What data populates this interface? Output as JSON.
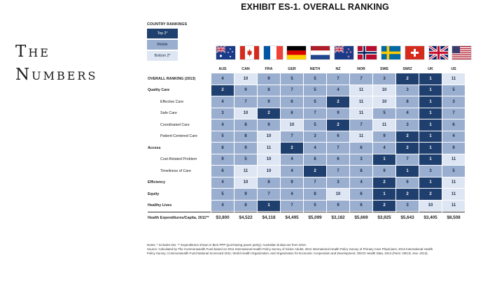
{
  "slide_title": "The Numbers",
  "exhibit_title": "EXHIBIT ES-1. OVERALL RANKING",
  "legend": {
    "title": "COUNTRY RANKINGS",
    "items": [
      {
        "label": "Top 2*",
        "tier": "top"
      },
      {
        "label": "Middle",
        "tier": "mid"
      },
      {
        "label": "Bottom 2*",
        "tier": "bot"
      }
    ]
  },
  "columns": [
    "AUS",
    "CAN",
    "FRA",
    "GER",
    "NETH",
    "NZ",
    "NOR",
    "SWE",
    "SWIZ",
    "UK",
    "US"
  ],
  "flags": [
    "australia-flag-icon",
    "canada-flag-icon",
    "france-flag-icon",
    "germany-flag-icon",
    "netherlands-flag-icon",
    "new-zealand-flag-icon",
    "norway-flag-icon",
    "sweden-flag-icon",
    "switzerland-flag-icon",
    "uk-flag-icon",
    "us-flag-icon"
  ],
  "rows": [
    {
      "label": "OVERALL RANKING (2013)",
      "kind": "main",
      "values": [
        "4",
        "10",
        "9",
        "5",
        "5",
        "7",
        "7",
        "3",
        "2",
        "1",
        "11"
      ]
    },
    {
      "label": "Quality Care",
      "kind": "main",
      "values": [
        "2",
        "9",
        "8",
        "7",
        "5",
        "4",
        "11",
        "10",
        "3",
        "1",
        "5"
      ]
    },
    {
      "label": "Effective Care",
      "kind": "sub",
      "values": [
        "4",
        "7",
        "9",
        "6",
        "5",
        "2",
        "11",
        "10",
        "8",
        "1",
        "3"
      ]
    },
    {
      "label": "Safe Care",
      "kind": "sub",
      "values": [
        "3",
        "10",
        "2",
        "6",
        "7",
        "9",
        "11",
        "5",
        "4",
        "1",
        "7"
      ]
    },
    {
      "label": "Coordinated Care",
      "kind": "sub",
      "values": [
        "4",
        "8",
        "9",
        "10",
        "5",
        "2",
        "7",
        "11",
        "3",
        "1",
        "6"
      ]
    },
    {
      "label": "Patient-Centered Care",
      "kind": "sub",
      "values": [
        "5",
        "8",
        "10",
        "7",
        "3",
        "6",
        "11",
        "9",
        "2",
        "1",
        "4"
      ]
    },
    {
      "label": "Access",
      "kind": "main",
      "values": [
        "8",
        "9",
        "11",
        "2",
        "4",
        "7",
        "6",
        "4",
        "2",
        "1",
        "9"
      ]
    },
    {
      "label": "Cost-Related Problem",
      "kind": "sub",
      "values": [
        "9",
        "5",
        "10",
        "4",
        "8",
        "6",
        "3",
        "1",
        "7",
        "1",
        "11"
      ]
    },
    {
      "label": "Timeliness of Care",
      "kind": "sub",
      "values": [
        "6",
        "11",
        "10",
        "4",
        "2",
        "7",
        "8",
        "9",
        "1",
        "3",
        "5"
      ]
    },
    {
      "label": "Efficiency",
      "kind": "main",
      "values": [
        "4",
        "10",
        "8",
        "9",
        "7",
        "3",
        "4",
        "2",
        "6",
        "1",
        "11"
      ]
    },
    {
      "label": "Equity",
      "kind": "main",
      "values": [
        "5",
        "9",
        "7",
        "4",
        "8",
        "10",
        "6",
        "1",
        "2",
        "2",
        "11"
      ]
    },
    {
      "label": "Healthy Lives",
      "kind": "main",
      "values": [
        "4",
        "8",
        "1",
        "7",
        "5",
        "9",
        "6",
        "2",
        "3",
        "10",
        "11"
      ]
    }
  ],
  "tiers": [
    [
      "mid",
      "bot",
      "mid",
      "mid",
      "mid",
      "mid",
      "mid",
      "mid",
      "top",
      "top",
      "bot"
    ],
    [
      "top",
      "mid",
      "mid",
      "mid",
      "mid",
      "mid",
      "bot",
      "bot",
      "mid",
      "top",
      "mid"
    ],
    [
      "mid",
      "mid",
      "mid",
      "mid",
      "mid",
      "top",
      "bot",
      "bot",
      "mid",
      "top",
      "mid"
    ],
    [
      "mid",
      "bot",
      "top",
      "mid",
      "mid",
      "mid",
      "bot",
      "mid",
      "mid",
      "top",
      "mid"
    ],
    [
      "mid",
      "mid",
      "mid",
      "bot",
      "mid",
      "top",
      "mid",
      "bot",
      "mid",
      "top",
      "mid"
    ],
    [
      "mid",
      "mid",
      "bot",
      "mid",
      "mid",
      "mid",
      "bot",
      "mid",
      "top",
      "top",
      "mid"
    ],
    [
      "mid",
      "mid",
      "bot",
      "top",
      "mid",
      "mid",
      "mid",
      "mid",
      "top",
      "top",
      "mid"
    ],
    [
      "mid",
      "mid",
      "bot",
      "mid",
      "mid",
      "mid",
      "mid",
      "top",
      "mid",
      "top",
      "bot"
    ],
    [
      "mid",
      "bot",
      "bot",
      "mid",
      "top",
      "mid",
      "mid",
      "mid",
      "top",
      "mid",
      "mid"
    ],
    [
      "mid",
      "bot",
      "mid",
      "mid",
      "mid",
      "mid",
      "mid",
      "top",
      "mid",
      "top",
      "bot"
    ],
    [
      "mid",
      "mid",
      "mid",
      "mid",
      "mid",
      "bot",
      "mid",
      "top",
      "top",
      "top",
      "bot"
    ],
    [
      "mid",
      "mid",
      "top",
      "mid",
      "mid",
      "mid",
      "mid",
      "top",
      "mid",
      "bot",
      "bot"
    ]
  ],
  "expenditures": {
    "label": "Health Expenditures/Capita, 2011**",
    "values": [
      "$3,800",
      "$4,522",
      "$4,118",
      "$4,495",
      "$5,099",
      "$3,182",
      "$5,669",
      "$3,925",
      "$5,643",
      "$3,405",
      "$8,508"
    ]
  },
  "notes": {
    "line1": "Notes: * Includes ties. ** Expenditures shown in $US PPP (purchasing power parity); Australian $ data are from 2010.",
    "line2": "Source: Calculated by The Commonwealth Fund based on 2011 International Health Policy Survey of Sicker Adults; 2012 International Health Policy Survey of Primary Care Physicians; 2013 International Health",
    "line3": "Policy Survey; Commonwealth Fund National Scorecard 2011; World Health Organization; and Organization for Economic Cooperation and Development, OECD Health Data, 2013 (Paris: OECD, Nov. 2013)."
  }
}
